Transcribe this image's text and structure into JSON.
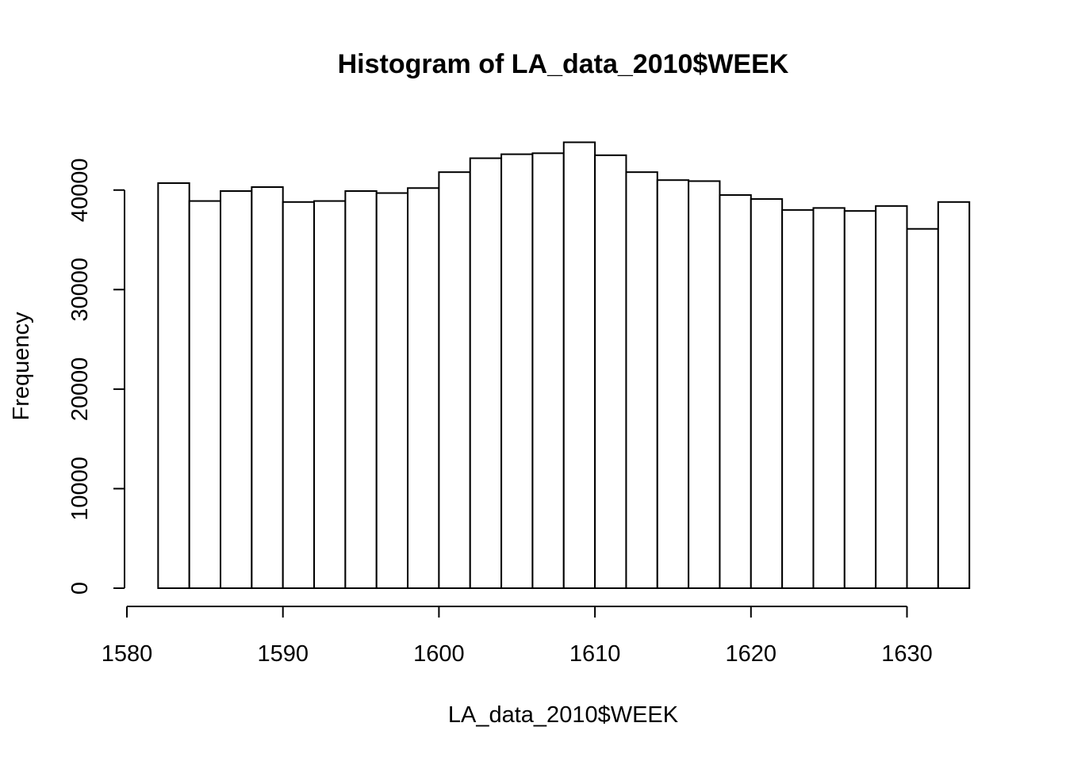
{
  "chart_data": {
    "type": "bar",
    "title": "Histogram of LA_data_2010$WEEK",
    "xlabel": "LA_data_2010$WEEK",
    "ylabel": "Frequency",
    "x_ticks": [
      1580,
      1590,
      1600,
      1610,
      1620,
      1630
    ],
    "y_ticks": [
      0,
      10000,
      20000,
      30000,
      40000
    ],
    "xlim": [
      1580,
      1634
    ],
    "ylim": [
      0,
      45000
    ],
    "grid": false,
    "bins": [
      {
        "x0": 1582,
        "x1": 1584,
        "value": 40700
      },
      {
        "x0": 1584,
        "x1": 1586,
        "value": 38900
      },
      {
        "x0": 1586,
        "x1": 1588,
        "value": 39900
      },
      {
        "x0": 1588,
        "x1": 1590,
        "value": 40300
      },
      {
        "x0": 1590,
        "x1": 1592,
        "value": 38800
      },
      {
        "x0": 1592,
        "x1": 1594,
        "value": 38900
      },
      {
        "x0": 1594,
        "x1": 1596,
        "value": 39900
      },
      {
        "x0": 1596,
        "x1": 1598,
        "value": 39700
      },
      {
        "x0": 1598,
        "x1": 1600,
        "value": 40200
      },
      {
        "x0": 1600,
        "x1": 1602,
        "value": 41800
      },
      {
        "x0": 1602,
        "x1": 1604,
        "value": 43200
      },
      {
        "x0": 1604,
        "x1": 1606,
        "value": 43600
      },
      {
        "x0": 1606,
        "x1": 1608,
        "value": 43700
      },
      {
        "x0": 1608,
        "x1": 1610,
        "value": 44800
      },
      {
        "x0": 1610,
        "x1": 1612,
        "value": 43500
      },
      {
        "x0": 1612,
        "x1": 1614,
        "value": 41800
      },
      {
        "x0": 1614,
        "x1": 1616,
        "value": 41000
      },
      {
        "x0": 1616,
        "x1": 1618,
        "value": 40900
      },
      {
        "x0": 1618,
        "x1": 1620,
        "value": 39500
      },
      {
        "x0": 1620,
        "x1": 1622,
        "value": 39100
      },
      {
        "x0": 1622,
        "x1": 1624,
        "value": 38000
      },
      {
        "x0": 1624,
        "x1": 1626,
        "value": 38200
      },
      {
        "x0": 1626,
        "x1": 1628,
        "value": 37900
      },
      {
        "x0": 1628,
        "x1": 1630,
        "value": 38400
      },
      {
        "x0": 1630,
        "x1": 1632,
        "value": 36100
      },
      {
        "x0": 1632,
        "x1": 1634,
        "value": 38800
      }
    ]
  }
}
